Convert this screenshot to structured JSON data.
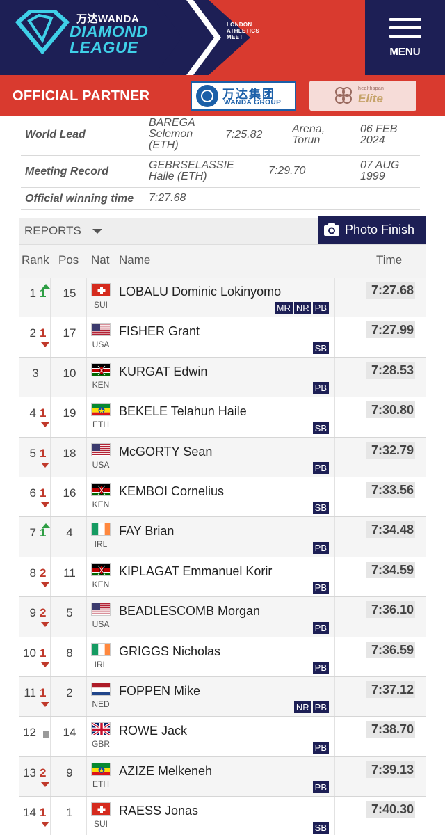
{
  "header": {
    "sponsor_top": "万达WANDA",
    "brand_line1": "DIAMOND",
    "brand_line2": "LEAGUE",
    "meet_line1": "LONDON",
    "meet_line2": "ATHLETICS",
    "meet_line3": "MEET",
    "menu_label": "MENU"
  },
  "partner": {
    "label": "OFFICIAL PARTNER",
    "wanda_cn": "万达集团",
    "wanda_en": "WANDA GROUP",
    "healthspan_small": "healthspan",
    "healthspan_big": "Elite"
  },
  "info": {
    "world_lead": {
      "label": "World Lead",
      "athlete1": "BAREGA",
      "athlete2": "Selemon",
      "athlete3": "(ETH)",
      "time": "7:25.82",
      "venue1": "Arena,",
      "venue2": "Torun",
      "date1": "06 FEB",
      "date2": "2024"
    },
    "meeting_record": {
      "label": "Meeting Record",
      "athlete1": "GEBRSELASSIE",
      "athlete2": "Haile (ETH)",
      "time": "7:29.70",
      "date1": "07 AUG",
      "date2": "1999"
    },
    "winning": {
      "label": "Official winning time",
      "time": "7:27.68"
    }
  },
  "controls": {
    "reports_label": "REPORTS",
    "photo_finish_label": "Photo Finish"
  },
  "columns": {
    "rank": "Rank",
    "pos": "Pos",
    "nat": "Nat",
    "name": "Name",
    "time": "Time"
  },
  "results": [
    {
      "rank": "1",
      "change": "1",
      "dir": "up",
      "pos": "15",
      "nat": "SUI",
      "name": "LOBALU Dominic Lokinyomo",
      "time": "7:27.68",
      "badges": [
        "MR",
        "NR",
        "PB"
      ]
    },
    {
      "rank": "2",
      "change": "1",
      "dir": "down",
      "pos": "17",
      "nat": "USA",
      "name": "FISHER Grant",
      "time": "7:27.99",
      "badges": [
        "SB"
      ]
    },
    {
      "rank": "3",
      "change": "",
      "dir": "none",
      "pos": "10",
      "nat": "KEN",
      "name": "KURGAT Edwin",
      "time": "7:28.53",
      "badges": [
        "PB"
      ]
    },
    {
      "rank": "4",
      "change": "1",
      "dir": "down",
      "pos": "19",
      "nat": "ETH",
      "name": "BEKELE Telahun Haile",
      "time": "7:30.80",
      "badges": [
        "SB"
      ]
    },
    {
      "rank": "5",
      "change": "1",
      "dir": "down",
      "pos": "18",
      "nat": "USA",
      "name": "McGORTY Sean",
      "time": "7:32.79",
      "badges": [
        "PB"
      ]
    },
    {
      "rank": "6",
      "change": "1",
      "dir": "down",
      "pos": "16",
      "nat": "KEN",
      "name": "KEMBOI Cornelius",
      "time": "7:33.56",
      "badges": [
        "SB"
      ]
    },
    {
      "rank": "7",
      "change": "1",
      "dir": "up",
      "pos": "4",
      "nat": "IRL",
      "name": "FAY Brian",
      "time": "7:34.48",
      "badges": [
        "PB"
      ]
    },
    {
      "rank": "8",
      "change": "2",
      "dir": "down",
      "pos": "11",
      "nat": "KEN",
      "name": "KIPLAGAT Emmanuel Korir",
      "time": "7:34.59",
      "badges": [
        "PB"
      ]
    },
    {
      "rank": "9",
      "change": "2",
      "dir": "down",
      "pos": "5",
      "nat": "USA",
      "name": "BEADLESCOMB Morgan",
      "time": "7:36.10",
      "badges": [
        "PB"
      ]
    },
    {
      "rank": "10",
      "change": "1",
      "dir": "down",
      "pos": "8",
      "nat": "IRL",
      "name": "GRIGGS Nicholas",
      "time": "7:36.59",
      "badges": [
        "PB"
      ]
    },
    {
      "rank": "11",
      "change": "1",
      "dir": "down",
      "pos": "2",
      "nat": "NED",
      "name": "FOPPEN Mike",
      "time": "7:37.12",
      "badges": [
        "NR",
        "PB"
      ]
    },
    {
      "rank": "12",
      "change": "",
      "dir": "same",
      "pos": "14",
      "nat": "GBR",
      "name": "ROWE Jack",
      "time": "7:38.70",
      "badges": [
        "PB"
      ]
    },
    {
      "rank": "13",
      "change": "2",
      "dir": "down",
      "pos": "9",
      "nat": "ETH",
      "name": "AZIZE Melkeneh",
      "time": "7:39.13",
      "badges": [
        "PB"
      ]
    },
    {
      "rank": "14",
      "change": "1",
      "dir": "down",
      "pos": "1",
      "nat": "SUI",
      "name": "RAESS Jonas",
      "time": "7:40.30",
      "badges": [
        "SB"
      ]
    }
  ]
}
